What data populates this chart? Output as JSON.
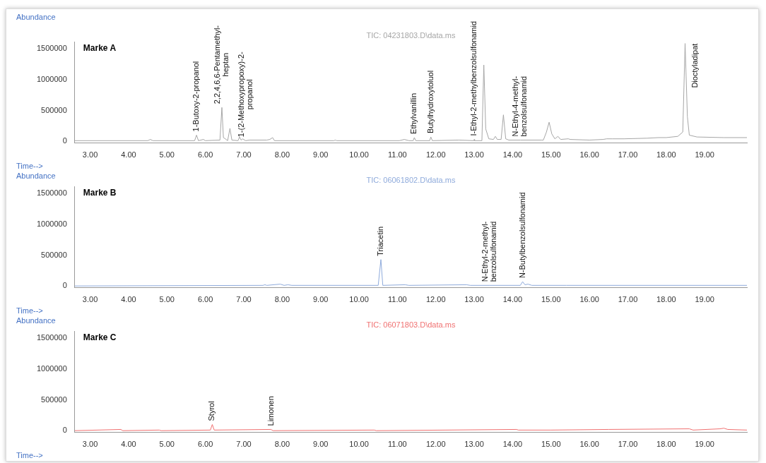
{
  "chart_data": [
    {
      "type": "line",
      "title": "Marke A",
      "xlabel": "Time-->",
      "ylabel": "Abundance",
      "grid": false,
      "marker": "none",
      "xlim": [
        2.6,
        20.1
      ],
      "ylim": [
        -30000,
        1620000
      ],
      "yticks": [
        0,
        500000,
        1000000,
        1500000
      ],
      "xticks": [
        {
          "value": 3,
          "label": "3.00"
        },
        {
          "value": 4,
          "label": "4.00"
        },
        {
          "value": 5,
          "label": "5.00"
        },
        {
          "value": 6,
          "label": "6.00"
        },
        {
          "value": 7,
          "label": "7.00"
        },
        {
          "value": 8,
          "label": "8.00"
        },
        {
          "value": 9,
          "label": "9.00"
        },
        {
          "value": 10,
          "label": "10.00"
        },
        {
          "value": 11,
          "label": "11.00"
        },
        {
          "value": 12,
          "label": "12.00"
        },
        {
          "value": 13,
          "label": "13.00"
        },
        {
          "value": 14,
          "label": "14.00"
        },
        {
          "value": 15,
          "label": "15.00"
        },
        {
          "value": 16,
          "label": "16.00"
        },
        {
          "value": 17,
          "label": "17.00"
        },
        {
          "value": 18,
          "label": "18.00"
        },
        {
          "value": 19,
          "label": "19.00"
        }
      ],
      "series": [
        {
          "name": "TIC: 04231803.D\\data.ms",
          "color": "#a6a6a6",
          "x": [
            2.6,
            4.5,
            4.57,
            4.63,
            5.72,
            5.77,
            5.82,
            5.95,
            6.0,
            6.38,
            6.43,
            6.47,
            6.52,
            6.58,
            6.64,
            6.69,
            6.85,
            6.89,
            6.93,
            6.97,
            7.05,
            7.15,
            7.6,
            7.68,
            7.75,
            7.8,
            9.35,
            9.38,
            9.42,
            11.05,
            11.18,
            11.3,
            11.41,
            11.44,
            11.48,
            11.84,
            11.87,
            11.91,
            12.6,
            12.99,
            13.0,
            13.01,
            13.2,
            13.25,
            13.3,
            13.38,
            13.5,
            13.55,
            13.6,
            13.7,
            13.76,
            13.82,
            13.9,
            14.2,
            14.75,
            14.8,
            14.88,
            14.95,
            15.02,
            15.1,
            15.18,
            15.25,
            15.45,
            15.5,
            16.0,
            16.35,
            16.45,
            16.6,
            16.9,
            17.5,
            17.8,
            18.0,
            18.3,
            18.43,
            18.49,
            18.55,
            18.6,
            18.8,
            19.5,
            20.1
          ],
          "values": [
            10000,
            10000,
            30000,
            10000,
            10000,
            100000,
            10000,
            30000,
            10000,
            20000,
            550000,
            60000,
            40000,
            10000,
            210000,
            20000,
            10000,
            70000,
            20000,
            40000,
            10000,
            20000,
            20000,
            30000,
            60000,
            10000,
            10000,
            20000,
            10000,
            10000,
            30000,
            10000,
            10000,
            60000,
            10000,
            10000,
            70000,
            10000,
            20000,
            10000,
            30000,
            10000,
            10000,
            1240000,
            200000,
            40000,
            30000,
            80000,
            30000,
            30000,
            430000,
            40000,
            20000,
            20000,
            20000,
            20000,
            150000,
            310000,
            120000,
            40000,
            80000,
            30000,
            40000,
            30000,
            20000,
            30000,
            40000,
            40000,
            40000,
            50000,
            60000,
            60000,
            80000,
            150000,
            1590000,
            400000,
            100000,
            70000,
            60000,
            60000
          ]
        }
      ],
      "annotations": [
        {
          "text": "1-Butoxy-2-propanol",
          "x": 5.77,
          "y": 100000
        },
        {
          "text": "2,2,4,6,6-Pentamethyl-\nheptan",
          "x": 6.43,
          "y": 550000
        },
        {
          "text": "1-(2-Methoxypropoxy)-2-\npropanol",
          "x": 7.05,
          "y": 10000
        },
        {
          "text": "Ethylvanillin",
          "x": 11.44,
          "y": 60000
        },
        {
          "text": "Butylhydroxytoluol",
          "x": 11.87,
          "y": 70000
        },
        {
          "text": "I-Ethyl-2-methylbenzolsulfonamid",
          "x": 13.0,
          "y": 30000
        },
        {
          "text": "N-Ethyl-4-methyl-\nbenzolsulfonamid",
          "x": 14.2,
          "y": 20000
        },
        {
          "text": "Dioctyladipat",
          "x": 18.49,
          "y": 1590000
        }
      ]
    },
    {
      "type": "line",
      "title": "Marke B",
      "xlabel": "Time-->",
      "ylabel": "Abundance",
      "grid": false,
      "marker": "none",
      "xlim": [
        2.6,
        20.1
      ],
      "ylim": [
        -30000,
        1620000
      ],
      "yticks": [
        0,
        500000,
        1000000,
        1500000
      ],
      "xticks": [
        {
          "value": 3,
          "label": "3.00"
        },
        {
          "value": 4,
          "label": "4.00"
        },
        {
          "value": 5,
          "label": "5.00"
        },
        {
          "value": 6,
          "label": "6.00"
        },
        {
          "value": 7,
          "label": "7.00"
        },
        {
          "value": 8,
          "label": "8.00"
        },
        {
          "value": 9,
          "label": "9.00"
        },
        {
          "value": 10,
          "label": "10.00"
        },
        {
          "value": 11,
          "label": "11.00"
        },
        {
          "value": 12,
          "label": "12.00"
        },
        {
          "value": 13,
          "label": "13.00"
        },
        {
          "value": 14,
          "label": "14.00"
        },
        {
          "value": 15,
          "label": "15.00"
        },
        {
          "value": 16,
          "label": "16.00"
        },
        {
          "value": 17,
          "label": "17.00"
        },
        {
          "value": 18,
          "label": "18.00"
        },
        {
          "value": 19,
          "label": "19.00"
        }
      ],
      "series": [
        {
          "name": "TIC: 06061802.D\\data.ms",
          "color": "#8eaadb",
          "x": [
            2.6,
            7.5,
            7.55,
            7.6,
            7.95,
            8.05,
            8.15,
            8.25,
            10.5,
            10.57,
            10.62,
            11.2,
            11.3,
            12.8,
            12.9,
            13.4,
            14.2,
            14.26,
            14.32,
            14.4,
            14.5,
            15.4,
            15.5,
            20.1
          ],
          "values": [
            0,
            10000,
            20000,
            10000,
            30000,
            10000,
            20000,
            10000,
            10000,
            430000,
            10000,
            20000,
            10000,
            20000,
            10000,
            10000,
            10000,
            70000,
            20000,
            30000,
            10000,
            10000,
            10000,
            10000
          ]
        }
      ],
      "annotations": [
        {
          "text": "Triacetin",
          "x": 10.57,
          "y": 430000
        },
        {
          "text": "N-Ethyl-2-methyl-\nbenzolsulfonamid",
          "x": 13.4,
          "y": 10000
        },
        {
          "text": "N-Butylbenzolsulfonamid",
          "x": 14.26,
          "y": 70000
        }
      ]
    },
    {
      "type": "line",
      "title": "Marke C",
      "xlabel": "Time-->",
      "ylabel": "Abundance",
      "grid": false,
      "marker": "none",
      "xlim": [
        2.6,
        20.1
      ],
      "ylim": [
        -30000,
        1620000
      ],
      "yticks": [
        0,
        500000,
        1000000,
        1500000
      ],
      "xticks": [
        {
          "value": 3,
          "label": "3.00"
        },
        {
          "value": 4,
          "label": "4.00"
        },
        {
          "value": 5,
          "label": "5.00"
        },
        {
          "value": 6,
          "label": "6.00"
        },
        {
          "value": 7,
          "label": "7.00"
        },
        {
          "value": 8,
          "label": "8.00"
        },
        {
          "value": 9,
          "label": "9.00"
        },
        {
          "value": 10,
          "label": "10.00"
        },
        {
          "value": 11,
          "label": "11.00"
        },
        {
          "value": 12,
          "label": "12.00"
        },
        {
          "value": 13,
          "label": "13.00"
        },
        {
          "value": 14,
          "label": "14.00"
        },
        {
          "value": 15,
          "label": "15.00"
        },
        {
          "value": 16,
          "label": "16.00"
        },
        {
          "value": 17,
          "label": "17.00"
        },
        {
          "value": 18,
          "label": "18.00"
        },
        {
          "value": 19,
          "label": "19.00"
        }
      ],
      "series": [
        {
          "name": "TIC: 06071803.D\\data.ms",
          "color": "#f07070",
          "x": [
            2.6,
            3.8,
            3.85,
            4.8,
            4.85,
            6.13,
            6.18,
            6.23,
            7.71,
            7.76,
            10.4,
            10.45,
            14.1,
            14.15,
            15.0,
            16.5,
            18.6,
            18.7,
            19.4,
            19.5,
            19.6,
            20.1
          ],
          "values": [
            0,
            20000,
            0,
            10000,
            0,
            10000,
            100000,
            10000,
            20000,
            0,
            10000,
            0,
            20000,
            10000,
            10000,
            20000,
            30000,
            10000,
            30000,
            40000,
            20000,
            10000
          ]
        }
      ],
      "annotations": [
        {
          "text": "Styrol",
          "x": 6.18,
          "y": 100000
        },
        {
          "text": "Limonen",
          "x": 7.71,
          "y": 20000
        }
      ]
    }
  ]
}
